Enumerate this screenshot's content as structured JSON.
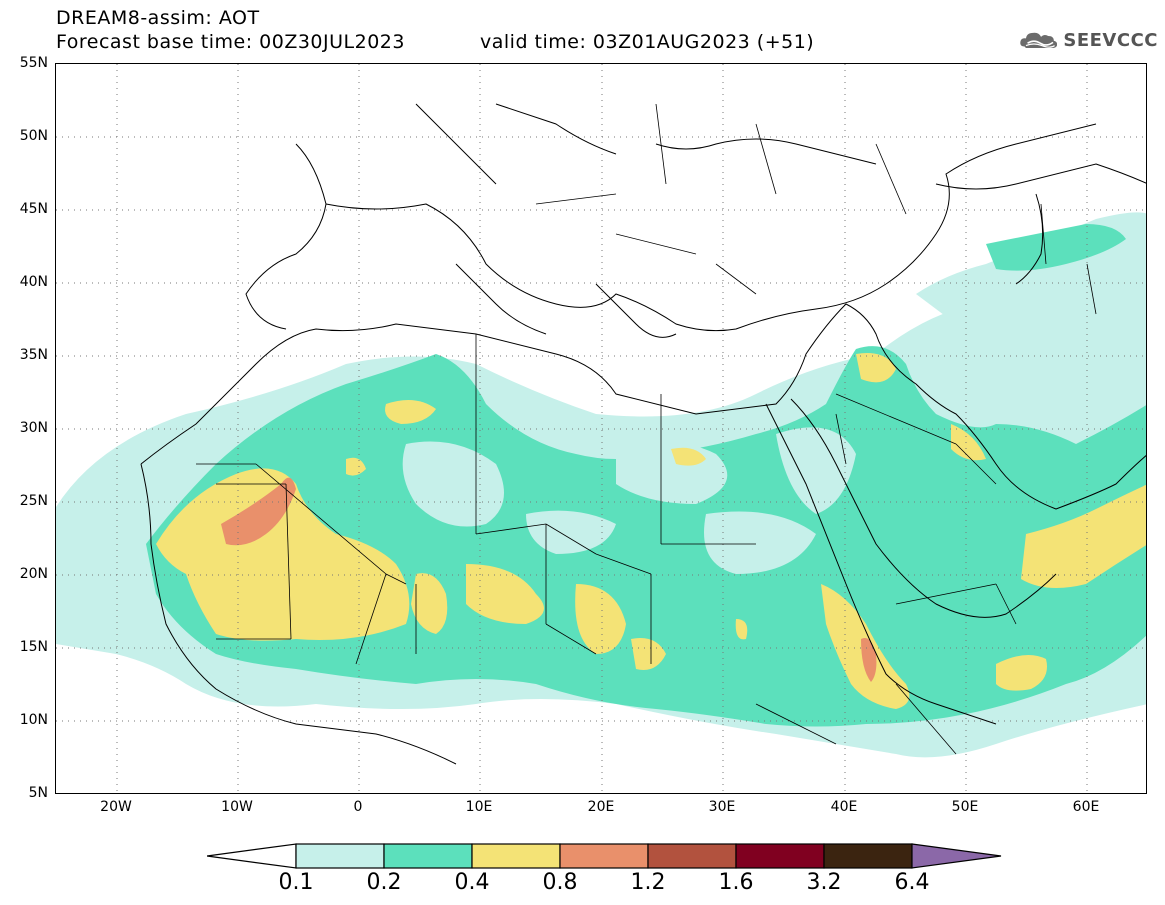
{
  "header": {
    "title": "DREAM8-assim: AOT",
    "base_time": "Forecast base time: 00Z30JUL2023",
    "valid_time": "valid time: 03Z01AUG2023 (+51)"
  },
  "logo": {
    "text": "SEEVCCC",
    "icon": "cloud-icon"
  },
  "map": {
    "lat_labels": [
      "55N",
      "50N",
      "45N",
      "40N",
      "35N",
      "30N",
      "25N",
      "20N",
      "15N",
      "10N",
      "5N"
    ],
    "lon_labels": [
      "20W",
      "10W",
      "0",
      "10E",
      "20E",
      "30E",
      "40E",
      "50E",
      "60E"
    ],
    "lat_range": [
      5,
      55
    ],
    "lon_range": [
      -25,
      65
    ],
    "grid": "dotted"
  },
  "legend": {
    "labels": [
      "0.1",
      "0.2",
      "0.4",
      "0.8",
      "1.2",
      "1.6",
      "3.2",
      "6.4"
    ],
    "colors": [
      "#ffffff",
      "#c6f0ea",
      "#5ce0bc",
      "#f4e376",
      "#e9906b",
      "#b2523e",
      "#800020",
      "#3b2410",
      "#8b68a8"
    ]
  }
}
